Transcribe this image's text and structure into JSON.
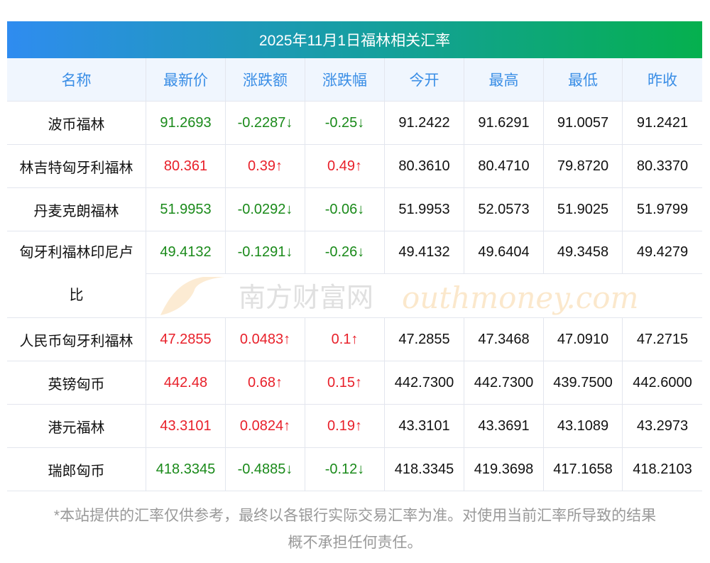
{
  "title": "2025年11月1日福林相关汇率",
  "headers": [
    "名称",
    "最新价",
    "涨跌额",
    "涨跌幅",
    "今开",
    "最高",
    "最低",
    "昨收"
  ],
  "rows": [
    {
      "name": "波币福林",
      "latest": "91.2693",
      "change": "-0.2287↓",
      "pct": "-0.25↓",
      "open": "91.2422",
      "high": "91.6291",
      "low": "91.0057",
      "prev": "91.2421",
      "dir": "down"
    },
    {
      "name": "林吉特匈牙利福林",
      "latest": "80.361",
      "change": "0.39↑",
      "pct": "0.49↑",
      "open": "80.3610",
      "high": "80.4710",
      "low": "79.8720",
      "prev": "80.3370",
      "dir": "up"
    },
    {
      "name": "丹麦克朗福林",
      "latest": "51.9953",
      "change": "-0.0292↓",
      "pct": "-0.06↓",
      "open": "51.9953",
      "high": "52.0573",
      "low": "51.9025",
      "prev": "51.9799",
      "dir": "down"
    },
    {
      "name": "匈牙利福林印尼卢比",
      "latest": "49.4132",
      "change": "-0.1291↓",
      "pct": "-0.26↓",
      "open": "49.4132",
      "high": "49.6404",
      "low": "49.3458",
      "prev": "49.4279",
      "dir": "down",
      "tall": true
    },
    {
      "name": "人民币匈牙利福林",
      "latest": "47.2855",
      "change": "0.0483↑",
      "pct": "0.1↑",
      "open": "47.2855",
      "high": "47.3468",
      "low": "47.0910",
      "prev": "47.2715",
      "dir": "up"
    },
    {
      "name": "英镑匈币",
      "latest": "442.48",
      "change": "0.68↑",
      "pct": "0.15↑",
      "open": "442.7300",
      "high": "442.7300",
      "low": "439.7500",
      "prev": "442.6000",
      "dir": "up"
    },
    {
      "name": "港元福林",
      "latest": "43.3101",
      "change": "0.0824↑",
      "pct": "0.19↑",
      "open": "43.3101",
      "high": "43.3691",
      "low": "43.1089",
      "prev": "43.2973",
      "dir": "up"
    },
    {
      "name": "瑞郎匈币",
      "latest": "418.3345",
      "change": "-0.4885↓",
      "pct": "-0.12↓",
      "open": "418.3345",
      "high": "419.3698",
      "low": "417.1658",
      "prev": "418.2103",
      "dir": "down"
    }
  ],
  "watermark": {
    "cn": "南方财富网",
    "en": "outhmoney.com"
  },
  "footer": [
    "*本站提供的汇率仅供参考，最终以各银行实际交易汇率为准。对使用当前汇率所导致的结果",
    "概不承担任何责任。"
  ],
  "colors": {
    "up": "#e8202a",
    "down": "#1a8a1a",
    "header_text": "#3a8ee6"
  }
}
